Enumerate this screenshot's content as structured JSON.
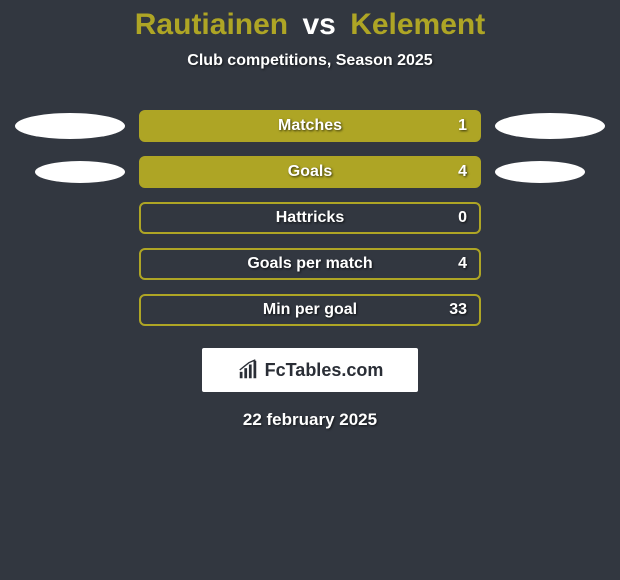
{
  "colors": {
    "background": "#323740",
    "accent": "#aea525",
    "text": "#ffffff",
    "brand_bg": "#ffffff",
    "brand_text": "#2a2e36"
  },
  "title": {
    "player1": "Rautiainen",
    "vs": "vs",
    "player2": "Kelement"
  },
  "subtitle": "Club competitions, Season 2025",
  "stats": [
    {
      "label": "Matches",
      "value": "1",
      "filled": true,
      "ellipse_left": true,
      "ellipse_right": true,
      "ellipse_small": false
    },
    {
      "label": "Goals",
      "value": "4",
      "filled": true,
      "ellipse_left": true,
      "ellipse_right": true,
      "ellipse_small": true
    },
    {
      "label": "Hattricks",
      "value": "0",
      "filled": false,
      "ellipse_left": false,
      "ellipse_right": false,
      "ellipse_small": false
    },
    {
      "label": "Goals per match",
      "value": "4",
      "filled": false,
      "ellipse_left": false,
      "ellipse_right": false,
      "ellipse_small": false
    },
    {
      "label": "Min per goal",
      "value": "33",
      "filled": false,
      "ellipse_left": false,
      "ellipse_right": false,
      "ellipse_small": false
    }
  ],
  "brand": "FcTables.com",
  "date": "22 february 2025"
}
